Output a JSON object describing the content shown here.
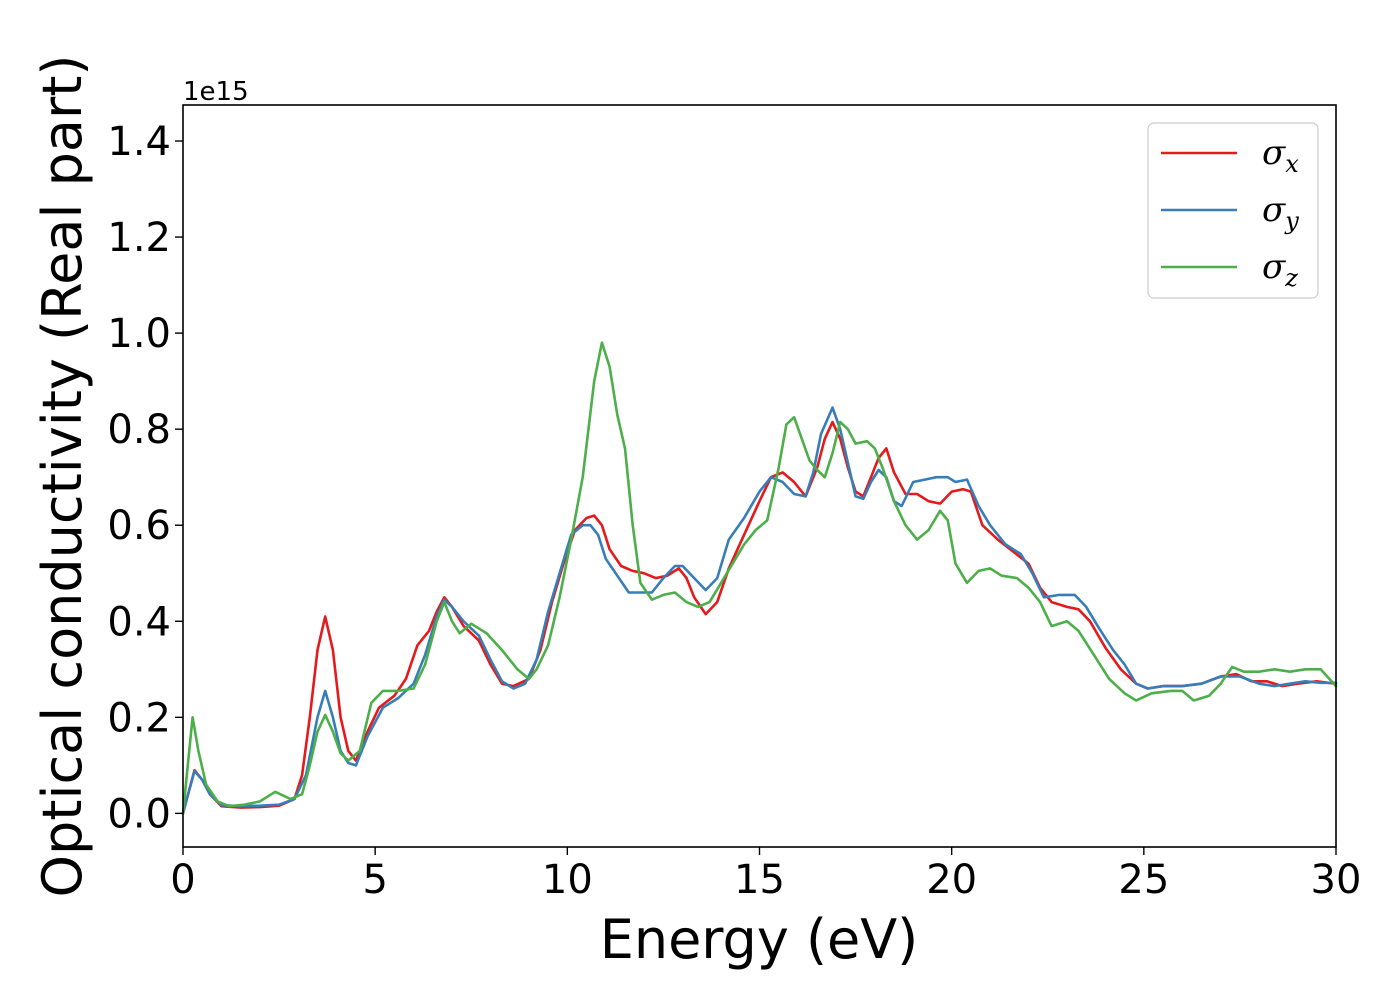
{
  "chart_data": {
    "type": "line",
    "xlabel": "Energy (eV)",
    "ylabel": "Optical conductivity (Real part)",
    "y_offset_label": "1e15",
    "xlim": [
      0,
      30
    ],
    "ylim": [
      -0.07,
      1.475
    ],
    "x_ticks": [
      0,
      5,
      10,
      15,
      20,
      25,
      30
    ],
    "x_tick_labels": [
      "0",
      "5",
      "10",
      "15",
      "20",
      "25",
      "30"
    ],
    "y_ticks": [
      0.0,
      0.2,
      0.4,
      0.6,
      0.8,
      1.0,
      1.2,
      1.4
    ],
    "y_tick_labels": [
      "0.0",
      "0.2",
      "0.4",
      "0.6",
      "0.8",
      "1.0",
      "1.2",
      "1.4"
    ],
    "grid": false,
    "legend_position": "top-right",
    "series": [
      {
        "name": "σx",
        "symbol": "σ",
        "subscript": "x",
        "color": "#e41a1c",
        "points": [
          [
            0,
            0
          ],
          [
            0.1,
            0.03
          ],
          [
            0.3,
            0.09
          ],
          [
            0.5,
            0.07
          ],
          [
            0.7,
            0.04
          ],
          [
            1.0,
            0.015
          ],
          [
            1.5,
            0.012
          ],
          [
            2.0,
            0.013
          ],
          [
            2.5,
            0.016
          ],
          [
            2.9,
            0.03
          ],
          [
            3.1,
            0.08
          ],
          [
            3.3,
            0.2
          ],
          [
            3.5,
            0.34
          ],
          [
            3.7,
            0.41
          ],
          [
            3.9,
            0.34
          ],
          [
            4.1,
            0.2
          ],
          [
            4.3,
            0.13
          ],
          [
            4.5,
            0.11
          ],
          [
            4.8,
            0.17
          ],
          [
            5.1,
            0.22
          ],
          [
            5.5,
            0.245
          ],
          [
            5.8,
            0.28
          ],
          [
            6.1,
            0.35
          ],
          [
            6.4,
            0.38
          ],
          [
            6.6,
            0.42
          ],
          [
            6.8,
            0.45
          ],
          [
            7.0,
            0.43
          ],
          [
            7.3,
            0.39
          ],
          [
            7.7,
            0.36
          ],
          [
            8.0,
            0.31
          ],
          [
            8.3,
            0.27
          ],
          [
            8.6,
            0.265
          ],
          [
            9.0,
            0.28
          ],
          [
            9.3,
            0.34
          ],
          [
            9.6,
            0.44
          ],
          [
            9.9,
            0.52
          ],
          [
            10.2,
            0.59
          ],
          [
            10.5,
            0.615
          ],
          [
            10.7,
            0.62
          ],
          [
            10.9,
            0.6
          ],
          [
            11.1,
            0.55
          ],
          [
            11.4,
            0.515
          ],
          [
            11.7,
            0.505
          ],
          [
            12.0,
            0.5
          ],
          [
            12.3,
            0.49
          ],
          [
            12.6,
            0.495
          ],
          [
            12.9,
            0.51
          ],
          [
            13.1,
            0.49
          ],
          [
            13.3,
            0.45
          ],
          [
            13.6,
            0.415
          ],
          [
            13.9,
            0.44
          ],
          [
            14.2,
            0.51
          ],
          [
            14.6,
            0.58
          ],
          [
            15.0,
            0.65
          ],
          [
            15.3,
            0.7
          ],
          [
            15.6,
            0.71
          ],
          [
            15.9,
            0.69
          ],
          [
            16.2,
            0.66
          ],
          [
            16.5,
            0.72
          ],
          [
            16.7,
            0.78
          ],
          [
            16.9,
            0.815
          ],
          [
            17.1,
            0.78
          ],
          [
            17.3,
            0.72
          ],
          [
            17.5,
            0.67
          ],
          [
            17.7,
            0.66
          ],
          [
            17.9,
            0.7
          ],
          [
            18.1,
            0.74
          ],
          [
            18.3,
            0.76
          ],
          [
            18.5,
            0.71
          ],
          [
            18.8,
            0.665
          ],
          [
            19.1,
            0.665
          ],
          [
            19.4,
            0.65
          ],
          [
            19.7,
            0.645
          ],
          [
            20.0,
            0.67
          ],
          [
            20.3,
            0.675
          ],
          [
            20.5,
            0.67
          ],
          [
            20.8,
            0.6
          ],
          [
            21.2,
            0.57
          ],
          [
            21.6,
            0.545
          ],
          [
            22.0,
            0.52
          ],
          [
            22.3,
            0.47
          ],
          [
            22.6,
            0.44
          ],
          [
            23.0,
            0.43
          ],
          [
            23.3,
            0.425
          ],
          [
            23.6,
            0.4
          ],
          [
            24.0,
            0.345
          ],
          [
            24.4,
            0.3
          ],
          [
            24.8,
            0.27
          ],
          [
            25.1,
            0.26
          ],
          [
            25.5,
            0.265
          ],
          [
            26.0,
            0.265
          ],
          [
            26.5,
            0.27
          ],
          [
            27.0,
            0.285
          ],
          [
            27.4,
            0.29
          ],
          [
            27.8,
            0.275
          ],
          [
            28.2,
            0.275
          ],
          [
            28.6,
            0.265
          ],
          [
            29.0,
            0.27
          ],
          [
            29.5,
            0.275
          ],
          [
            29.8,
            0.272
          ],
          [
            30.0,
            0.27
          ]
        ]
      },
      {
        "name": "σy",
        "symbol": "σ",
        "subscript": "y",
        "color": "#377eb8",
        "points": [
          [
            0,
            0
          ],
          [
            0.1,
            0.03
          ],
          [
            0.3,
            0.088
          ],
          [
            0.5,
            0.07
          ],
          [
            0.7,
            0.04
          ],
          [
            1.0,
            0.017
          ],
          [
            1.5,
            0.015
          ],
          [
            2.0,
            0.016
          ],
          [
            2.5,
            0.018
          ],
          [
            2.9,
            0.03
          ],
          [
            3.2,
            0.08
          ],
          [
            3.5,
            0.2
          ],
          [
            3.7,
            0.255
          ],
          [
            3.9,
            0.2
          ],
          [
            4.1,
            0.13
          ],
          [
            4.3,
            0.105
          ],
          [
            4.5,
            0.1
          ],
          [
            4.8,
            0.16
          ],
          [
            5.2,
            0.22
          ],
          [
            5.6,
            0.24
          ],
          [
            6.0,
            0.27
          ],
          [
            6.3,
            0.33
          ],
          [
            6.6,
            0.41
          ],
          [
            6.8,
            0.445
          ],
          [
            7.0,
            0.43
          ],
          [
            7.3,
            0.4
          ],
          [
            7.7,
            0.37
          ],
          [
            8.0,
            0.32
          ],
          [
            8.3,
            0.275
          ],
          [
            8.6,
            0.26
          ],
          [
            8.9,
            0.27
          ],
          [
            9.2,
            0.32
          ],
          [
            9.5,
            0.42
          ],
          [
            9.8,
            0.5
          ],
          [
            10.1,
            0.58
          ],
          [
            10.4,
            0.6
          ],
          [
            10.6,
            0.6
          ],
          [
            10.8,
            0.58
          ],
          [
            11.0,
            0.53
          ],
          [
            11.3,
            0.495
          ],
          [
            11.6,
            0.46
          ],
          [
            11.9,
            0.46
          ],
          [
            12.2,
            0.46
          ],
          [
            12.5,
            0.49
          ],
          [
            12.8,
            0.515
          ],
          [
            13.0,
            0.515
          ],
          [
            13.3,
            0.49
          ],
          [
            13.6,
            0.465
          ],
          [
            13.9,
            0.49
          ],
          [
            14.2,
            0.57
          ],
          [
            14.6,
            0.615
          ],
          [
            15.0,
            0.67
          ],
          [
            15.3,
            0.7
          ],
          [
            15.6,
            0.69
          ],
          [
            15.9,
            0.665
          ],
          [
            16.2,
            0.66
          ],
          [
            16.4,
            0.71
          ],
          [
            16.6,
            0.79
          ],
          [
            16.9,
            0.845
          ],
          [
            17.1,
            0.8
          ],
          [
            17.3,
            0.73
          ],
          [
            17.5,
            0.66
          ],
          [
            17.7,
            0.655
          ],
          [
            17.9,
            0.69
          ],
          [
            18.1,
            0.715
          ],
          [
            18.3,
            0.7
          ],
          [
            18.5,
            0.65
          ],
          [
            18.7,
            0.64
          ],
          [
            19.0,
            0.69
          ],
          [
            19.3,
            0.695
          ],
          [
            19.6,
            0.7
          ],
          [
            19.9,
            0.7
          ],
          [
            20.1,
            0.69
          ],
          [
            20.4,
            0.695
          ],
          [
            20.7,
            0.64
          ],
          [
            21.0,
            0.6
          ],
          [
            21.4,
            0.56
          ],
          [
            21.8,
            0.54
          ],
          [
            22.1,
            0.5
          ],
          [
            22.4,
            0.45
          ],
          [
            22.8,
            0.455
          ],
          [
            23.2,
            0.455
          ],
          [
            23.5,
            0.43
          ],
          [
            23.8,
            0.39
          ],
          [
            24.2,
            0.34
          ],
          [
            24.5,
            0.31
          ],
          [
            24.8,
            0.27
          ],
          [
            25.1,
            0.26
          ],
          [
            25.5,
            0.265
          ],
          [
            26.0,
            0.265
          ],
          [
            26.5,
            0.27
          ],
          [
            27.0,
            0.285
          ],
          [
            27.5,
            0.285
          ],
          [
            28.0,
            0.27
          ],
          [
            28.4,
            0.265
          ],
          [
            28.8,
            0.27
          ],
          [
            29.2,
            0.275
          ],
          [
            29.6,
            0.272
          ],
          [
            30.0,
            0.272
          ]
        ]
      },
      {
        "name": "σz",
        "symbol": "σ",
        "subscript": "z",
        "color": "#4daf4a",
        "points": [
          [
            0,
            0
          ],
          [
            0.1,
            0.08
          ],
          [
            0.25,
            0.2
          ],
          [
            0.4,
            0.13
          ],
          [
            0.6,
            0.06
          ],
          [
            0.9,
            0.025
          ],
          [
            1.2,
            0.015
          ],
          [
            1.6,
            0.018
          ],
          [
            2.0,
            0.025
          ],
          [
            2.4,
            0.045
          ],
          [
            2.8,
            0.03
          ],
          [
            3.1,
            0.04
          ],
          [
            3.3,
            0.1
          ],
          [
            3.5,
            0.17
          ],
          [
            3.7,
            0.205
          ],
          [
            3.9,
            0.17
          ],
          [
            4.1,
            0.125
          ],
          [
            4.3,
            0.11
          ],
          [
            4.6,
            0.13
          ],
          [
            4.9,
            0.23
          ],
          [
            5.2,
            0.255
          ],
          [
            5.6,
            0.255
          ],
          [
            6.0,
            0.26
          ],
          [
            6.3,
            0.31
          ],
          [
            6.6,
            0.4
          ],
          [
            6.8,
            0.44
          ],
          [
            7.0,
            0.4
          ],
          [
            7.2,
            0.375
          ],
          [
            7.5,
            0.395
          ],
          [
            7.9,
            0.375
          ],
          [
            8.3,
            0.34
          ],
          [
            8.7,
            0.3
          ],
          [
            9.0,
            0.28
          ],
          [
            9.2,
            0.3
          ],
          [
            9.5,
            0.35
          ],
          [
            9.8,
            0.45
          ],
          [
            10.1,
            0.57
          ],
          [
            10.4,
            0.7
          ],
          [
            10.7,
            0.9
          ],
          [
            10.9,
            0.98
          ],
          [
            11.1,
            0.93
          ],
          [
            11.3,
            0.83
          ],
          [
            11.5,
            0.76
          ],
          [
            11.7,
            0.6
          ],
          [
            11.9,
            0.48
          ],
          [
            12.2,
            0.445
          ],
          [
            12.5,
            0.455
          ],
          [
            12.8,
            0.46
          ],
          [
            13.1,
            0.44
          ],
          [
            13.4,
            0.43
          ],
          [
            13.7,
            0.44
          ],
          [
            14.0,
            0.48
          ],
          [
            14.3,
            0.52
          ],
          [
            14.6,
            0.56
          ],
          [
            14.9,
            0.59
          ],
          [
            15.2,
            0.61
          ],
          [
            15.5,
            0.72
          ],
          [
            15.7,
            0.81
          ],
          [
            15.9,
            0.825
          ],
          [
            16.1,
            0.78
          ],
          [
            16.3,
            0.735
          ],
          [
            16.5,
            0.715
          ],
          [
            16.7,
            0.7
          ],
          [
            16.9,
            0.75
          ],
          [
            17.1,
            0.815
          ],
          [
            17.3,
            0.8
          ],
          [
            17.5,
            0.77
          ],
          [
            17.8,
            0.775
          ],
          [
            18.0,
            0.76
          ],
          [
            18.2,
            0.72
          ],
          [
            18.5,
            0.65
          ],
          [
            18.8,
            0.6
          ],
          [
            19.1,
            0.57
          ],
          [
            19.4,
            0.59
          ],
          [
            19.7,
            0.63
          ],
          [
            19.9,
            0.61
          ],
          [
            20.1,
            0.52
          ],
          [
            20.4,
            0.48
          ],
          [
            20.7,
            0.505
          ],
          [
            21.0,
            0.51
          ],
          [
            21.3,
            0.495
          ],
          [
            21.7,
            0.49
          ],
          [
            22.0,
            0.47
          ],
          [
            22.3,
            0.44
          ],
          [
            22.6,
            0.39
          ],
          [
            23.0,
            0.4
          ],
          [
            23.3,
            0.38
          ],
          [
            23.7,
            0.33
          ],
          [
            24.1,
            0.28
          ],
          [
            24.5,
            0.25
          ],
          [
            24.8,
            0.235
          ],
          [
            25.2,
            0.25
          ],
          [
            25.7,
            0.255
          ],
          [
            26.0,
            0.255
          ],
          [
            26.3,
            0.235
          ],
          [
            26.7,
            0.245
          ],
          [
            27.0,
            0.27
          ],
          [
            27.3,
            0.305
          ],
          [
            27.6,
            0.295
          ],
          [
            28.0,
            0.295
          ],
          [
            28.4,
            0.3
          ],
          [
            28.8,
            0.295
          ],
          [
            29.2,
            0.3
          ],
          [
            29.6,
            0.3
          ],
          [
            30.0,
            0.265
          ]
        ]
      }
    ]
  }
}
